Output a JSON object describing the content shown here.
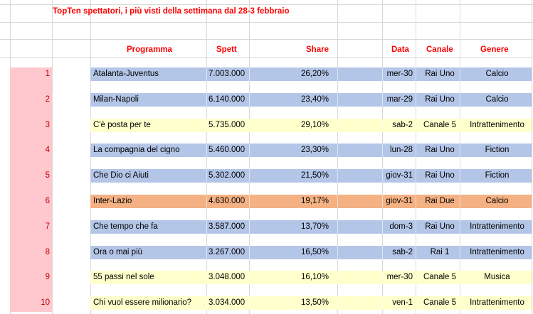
{
  "title": "TopTen spettatori, i più visti della settimana dal 28-3 febbraio",
  "headers": {
    "programma": "Programma",
    "spett": "Spett",
    "share": "Share",
    "data": "Data",
    "canale": "Canale",
    "genere": "Genere"
  },
  "colors": {
    "blue": "#b4c6e7",
    "yellow": "#ffffcc",
    "orange": "#f4b183",
    "rank_bg": "#ffc7ce",
    "red_text": "#ff0000"
  },
  "rows": [
    {
      "rank": "1",
      "programma": "Atalanta-Juventus",
      "spett": "7.003.000",
      "share": "26,20%",
      "data": "mer-30",
      "canale": "Rai Uno",
      "genere": "Calcio",
      "color": "#b4c6e7"
    },
    {
      "rank": "2",
      "programma": "Milan-Napoli",
      "spett": "6.140.000",
      "share": "23,40%",
      "data": "mar-29",
      "canale": "Rai Uno",
      "genere": "Calcio",
      "color": "#b4c6e7"
    },
    {
      "rank": "3",
      "programma": "C'è posta per te",
      "spett": "5.735.000",
      "share": "29,10%",
      "data": "sab-2",
      "canale": "Canale 5",
      "genere": "Intrattenimento",
      "color": "#ffffcc"
    },
    {
      "rank": "4",
      "programma": "La compagnia del cigno",
      "spett": "5.460.000",
      "share": "23,30%",
      "data": "lun-28",
      "canale": "Rai Uno",
      "genere": "Fiction",
      "color": "#b4c6e7"
    },
    {
      "rank": "5",
      "programma": "Che Dio ci Aiuti",
      "spett": "5.302.000",
      "share": "21,50%",
      "data": "giov-31",
      "canale": "Rai Uno",
      "genere": "Fiction",
      "color": "#b4c6e7"
    },
    {
      "rank": "6",
      "programma": "Inter-Lazio",
      "spett": "4.630.000",
      "share": "19,17%",
      "data": "giov-31",
      "canale": "Rai Due",
      "genere": "Calcio",
      "color": "#f4b183"
    },
    {
      "rank": "7",
      "programma": "Che tempo che fa",
      "spett": "3.587.000",
      "share": "13,70%",
      "data": "dom-3",
      "canale": "Rai Uno",
      "genere": "Intrattenimento",
      "color": "#b4c6e7"
    },
    {
      "rank": "8",
      "programma": "Ora o mai più",
      "spett": "3.267.000",
      "share": "16,50%",
      "data": "sab-2",
      "canale": "Rai 1",
      "genere": "Intrattenimento",
      "color": "#b4c6e7"
    },
    {
      "rank": "9",
      "programma": "55 passi nel sole",
      "spett": "3.048.000",
      "share": "16,10%",
      "data": "mer-30",
      "canale": "Canale 5",
      "genere": "Musica",
      "color": "#ffffcc"
    },
    {
      "rank": "10",
      "programma": "Chi vuol essere milionario?",
      "spett": "3.034.000",
      "share": "13,50%",
      "data": "ven-1",
      "canale": "Canale 5",
      "genere": "Intrattenimento",
      "color": "#ffffcc"
    }
  ]
}
